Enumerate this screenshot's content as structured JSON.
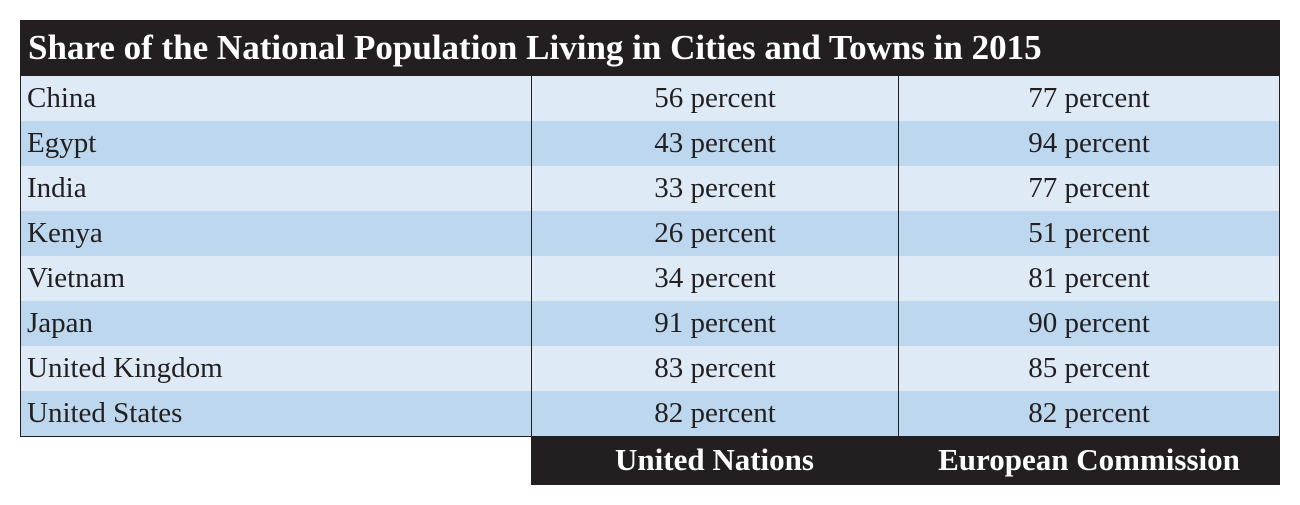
{
  "chart_data": {
    "type": "table",
    "title": "Share of the National Population Living in Cities and Towns in 2015",
    "columns": [
      "United Nations",
      "European Commission"
    ],
    "unit": "percent",
    "rows": [
      {
        "country": "China",
        "un": "56 percent",
        "ec": "77 percent"
      },
      {
        "country": "Egypt",
        "un": "43 percent",
        "ec": "94 percent"
      },
      {
        "country": "India",
        "un": "33 percent",
        "ec": "77 percent"
      },
      {
        "country": "Kenya",
        "un": "26 percent",
        "ec": "51 percent"
      },
      {
        "country": "Vietnam",
        "un": "34 percent",
        "ec": "81 percent"
      },
      {
        "country": "Japan",
        "un": "91 percent",
        "ec": "90 percent"
      },
      {
        "country": "United Kingdom",
        "un": "83 percent",
        "ec": "85 percent"
      },
      {
        "country": "United States",
        "un": "82 percent",
        "ec": "82 percent"
      }
    ]
  },
  "colors": {
    "header_bg": "#231f20",
    "row_light": "#deebf7",
    "row_dark": "#bdd7ee",
    "text": "#231f20"
  }
}
